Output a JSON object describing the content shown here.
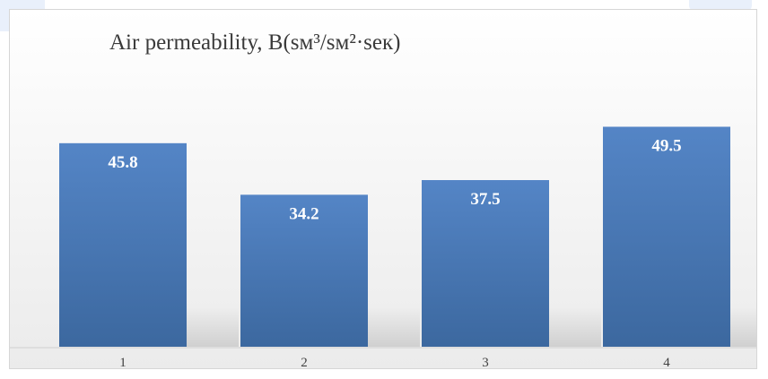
{
  "chart_data": {
    "type": "bar",
    "title": "Air permeability,  B(sм³/sм²·seк)",
    "categories": [
      "1",
      "2",
      "3",
      "4"
    ],
    "values": [
      45.8,
      34.2,
      37.5,
      49.5
    ],
    "data_labels": [
      "45.8",
      "34.2",
      "37.5",
      "49.5"
    ],
    "xlabel": "",
    "ylabel": "",
    "grid": false,
    "legend": "none",
    "colors": {
      "bar_top": "#5485c6",
      "bar_bottom": "#3c689f",
      "label": "#ffffff",
      "axis_text": "#404040",
      "title_text": "#3a3a3a"
    }
  }
}
